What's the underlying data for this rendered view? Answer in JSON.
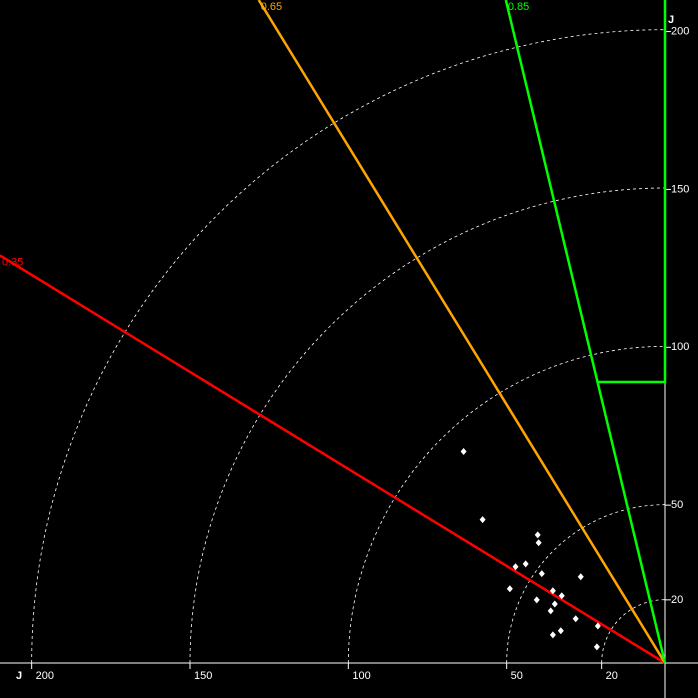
{
  "chart_data": {
    "type": "scatter",
    "axis_label": "J",
    "xlim": [
      0,
      210
    ],
    "ylim": [
      0,
      210
    ],
    "xticks": [
      20,
      50,
      100,
      150,
      200
    ],
    "yticks": [
      20,
      50,
      100,
      150,
      200
    ],
    "grid": true,
    "point_color": "#ffffff",
    "rays": [
      {
        "value": 0.35,
        "color": "#ff0000"
      },
      {
        "value": 0.65,
        "color": "#ffa500"
      },
      {
        "value": 0.85,
        "color": "#00ff00",
        "bound": 89
      }
    ],
    "x": [
      63.6,
      57.6,
      40.2,
      39.9,
      47.2,
      44.0,
      38.9,
      26.6,
      49.0,
      35.4,
      32.6,
      40.5,
      34.8,
      36.1,
      28.2,
      21.2,
      32.9,
      35.4,
      21.5
    ],
    "y": [
      67.0,
      45.4,
      40.6,
      38.1,
      30.5,
      31.4,
      28.3,
      27.3,
      23.5,
      22.9,
      21.3,
      20.0,
      18.7,
      16.5,
      14.0,
      11.7,
      10.2,
      8.9,
      5.1
    ]
  }
}
